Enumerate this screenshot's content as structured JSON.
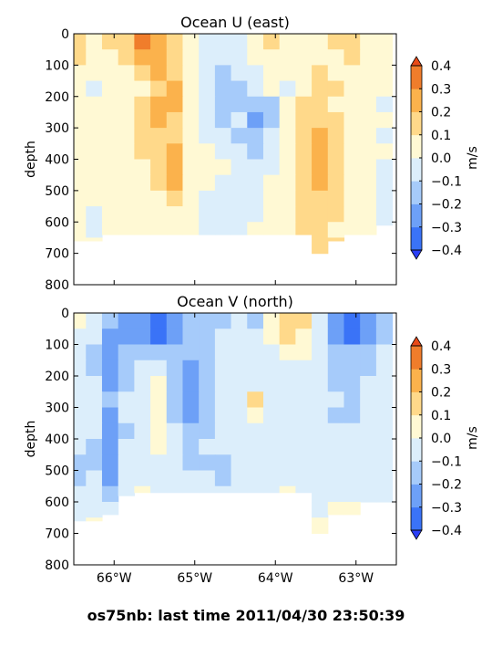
{
  "footer": {
    "text": "os75nb: last time 2011/04/30 23:50:39"
  },
  "chart_data": [
    {
      "type": "heatmap",
      "title": "Ocean U (east)",
      "ylabel": "depth",
      "y_ticks": [
        0,
        100,
        200,
        300,
        400,
        500,
        600,
        700,
        800
      ],
      "ylim": [
        800,
        0
      ],
      "xlim": [
        -66.5,
        -62.5
      ],
      "x_ticks": [
        -66,
        -65,
        -64,
        -63
      ],
      "x_tick_labels": [],
      "colorbar": {
        "label": "m/s",
        "levels": [
          -0.4,
          -0.3,
          -0.2,
          -0.1,
          0.0,
          0.1,
          0.2,
          0.3,
          0.4
        ],
        "tick_labels": [
          "0.4",
          "0.3",
          "0.2",
          "0.1",
          "0.0",
          "−0.1",
          "−0.2",
          "−0.3",
          "−0.4"
        ],
        "colors": [
          "#2a3ff6",
          "#3a73f7",
          "#6da0f7",
          "#a6cbfa",
          "#dceefb",
          "#fff9d4",
          "#ffd98a",
          "#fbb24c",
          "#f07d2b",
          "#e84a18"
        ]
      },
      "x": [
        -66.45,
        -66.25,
        -66.05,
        -65.85,
        -65.65,
        -65.45,
        -65.25,
        -65.05,
        -64.85,
        -64.65,
        -64.45,
        -64.25,
        -64.05,
        -63.85,
        -63.65,
        -63.45,
        -63.25,
        -63.05,
        -62.85,
        -62.65
      ],
      "depth": [
        25,
        75,
        125,
        175,
        225,
        275,
        325,
        375,
        425,
        475,
        525,
        575,
        625,
        675
      ],
      "series": [
        [
          0.15,
          0.08,
          0.12,
          0.18,
          0.3,
          0.25,
          0.12,
          0.02,
          -0.05,
          -0.08,
          -0.02,
          0.05,
          0.12,
          0.08,
          0.05,
          0.08,
          0.12,
          0.15,
          0.08,
          0.03
        ],
        [
          0.1,
          0.05,
          0.08,
          0.15,
          0.25,
          0.22,
          0.12,
          0.05,
          -0.05,
          -0.1,
          -0.05,
          0.02,
          0.08,
          0.05,
          0.03,
          0.05,
          0.08,
          0.12,
          0.05,
          0.02
        ],
        [
          0.05,
          0.02,
          0.05,
          0.08,
          0.12,
          0.22,
          0.15,
          0.05,
          -0.02,
          -0.12,
          -0.1,
          -0.02,
          0.02,
          0.02,
          0.05,
          0.12,
          0.08,
          0.05,
          0.03,
          0.0
        ],
        [
          0.05,
          -0.02,
          0.02,
          0.05,
          0.08,
          0.18,
          0.22,
          0.05,
          -0.05,
          -0.15,
          -0.12,
          -0.05,
          0.0,
          -0.02,
          0.08,
          0.15,
          0.1,
          0.05,
          0.02,
          0.0
        ],
        [
          0.05,
          0.0,
          0.02,
          0.05,
          0.1,
          0.22,
          0.22,
          0.05,
          -0.05,
          -0.12,
          -0.15,
          -0.18,
          -0.12,
          0.05,
          0.12,
          0.15,
          0.08,
          0.05,
          0.02,
          -0.02
        ],
        [
          0.02,
          0.02,
          0.05,
          0.05,
          0.12,
          0.22,
          0.18,
          0.02,
          -0.1,
          -0.15,
          -0.1,
          -0.25,
          -0.15,
          0.05,
          0.1,
          0.15,
          0.12,
          0.05,
          0.02,
          0.0
        ],
        [
          0.02,
          0.05,
          0.05,
          0.05,
          0.1,
          0.15,
          0.15,
          0.02,
          -0.02,
          -0.05,
          -0.12,
          -0.15,
          -0.1,
          0.05,
          0.15,
          0.22,
          0.12,
          0.05,
          0.0,
          -0.02
        ],
        [
          0.05,
          0.05,
          0.05,
          0.05,
          0.1,
          0.12,
          0.22,
          0.05,
          0.02,
          -0.02,
          -0.08,
          -0.15,
          -0.05,
          0.05,
          0.18,
          0.22,
          0.12,
          0.05,
          0.02,
          0.0
        ],
        [
          0.05,
          0.05,
          0.05,
          0.05,
          0.08,
          0.15,
          0.25,
          0.05,
          0.02,
          0.0,
          -0.05,
          -0.08,
          -0.02,
          0.05,
          0.15,
          0.22,
          0.12,
          0.05,
          0.0,
          -0.02
        ],
        [
          0.05,
          0.02,
          0.05,
          0.05,
          0.05,
          0.12,
          0.22,
          0.05,
          0.0,
          -0.05,
          -0.08,
          -0.05,
          0.0,
          0.05,
          0.12,
          0.22,
          0.1,
          0.05,
          0.0,
          -0.02
        ],
        [
          0.02,
          0.0,
          0.05,
          0.02,
          0.05,
          0.08,
          0.15,
          0.02,
          -0.02,
          -0.05,
          -0.05,
          -0.02,
          0.02,
          0.05,
          0.1,
          0.18,
          0.12,
          0.05,
          0.0,
          -0.02
        ],
        [
          0.0,
          -0.02,
          0.02,
          0.02,
          0.05,
          0.05,
          0.08,
          0.02,
          -0.02,
          -0.05,
          -0.05,
          -0.02,
          0.02,
          0.05,
          0.1,
          0.15,
          0.1,
          0.05,
          0.02,
          -0.05
        ],
        [
          0.02,
          -0.02,
          0.0,
          0.02,
          0.02,
          0.05,
          0.05,
          0.02,
          -0.02,
          -0.05,
          -0.02,
          0.0,
          0.05,
          0.05,
          0.12,
          0.15,
          0.05,
          0.02,
          0.0,
          -0.02
        ],
        [
          0.05,
          0.02,
          -0.02,
          0.0,
          0.02,
          0.02,
          0.02,
          0.0,
          -0.02,
          -0.02,
          0.0,
          0.02,
          0.05,
          0.02,
          0.08,
          0.15,
          0.12,
          0.02,
          0.0,
          0.0
        ]
      ],
      "max_depth": [
        660,
        660,
        640,
        640,
        640,
        640,
        640,
        640,
        640,
        640,
        640,
        640,
        640,
        640,
        640,
        720,
        660,
        640,
        640,
        610
      ]
    },
    {
      "type": "heatmap",
      "title": "Ocean V (north)",
      "ylabel": "depth",
      "y_ticks": [
        0,
        100,
        200,
        300,
        400,
        500,
        600,
        700,
        800
      ],
      "ylim": [
        800,
        0
      ],
      "xlim": [
        -66.5,
        -62.5
      ],
      "x_ticks": [
        -66,
        -65,
        -64,
        -63
      ],
      "x_tick_labels": [
        "66°W",
        "65°W",
        "64°W",
        "63°W"
      ],
      "colorbar": {
        "label": "m/s",
        "levels": [
          -0.4,
          -0.3,
          -0.2,
          -0.1,
          0.0,
          0.1,
          0.2,
          0.3,
          0.4
        ],
        "tick_labels": [
          "0.4",
          "0.3",
          "0.2",
          "0.1",
          "0.0",
          "−0.1",
          "−0.2",
          "−0.3",
          "−0.4"
        ],
        "colors": [
          "#2a3ff6",
          "#3a73f7",
          "#6da0f7",
          "#a6cbfa",
          "#dceefb",
          "#fff9d4",
          "#ffd98a",
          "#fbb24c",
          "#f07d2b",
          "#e84a18"
        ]
      },
      "x": [
        -66.45,
        -66.25,
        -66.05,
        -65.85,
        -65.65,
        -65.45,
        -65.25,
        -65.05,
        -64.85,
        -64.65,
        -64.45,
        -64.25,
        -64.05,
        -63.85,
        -63.65,
        -63.45,
        -63.25,
        -63.05,
        -62.85,
        -62.65
      ],
      "depth": [
        25,
        75,
        125,
        175,
        225,
        275,
        325,
        375,
        425,
        475,
        525,
        575,
        625,
        675
      ],
      "series": [
        [
          0.05,
          -0.05,
          -0.15,
          -0.22,
          -0.28,
          -0.32,
          -0.28,
          -0.15,
          -0.12,
          -0.12,
          -0.08,
          -0.12,
          0.05,
          0.15,
          0.12,
          -0.1,
          -0.22,
          -0.35,
          -0.25,
          -0.15
        ],
        [
          -0.05,
          -0.08,
          -0.22,
          -0.22,
          -0.25,
          -0.32,
          -0.25,
          -0.15,
          -0.12,
          -0.1,
          -0.08,
          -0.05,
          0.05,
          0.12,
          0.08,
          -0.1,
          -0.22,
          -0.32,
          -0.25,
          -0.12
        ],
        [
          -0.08,
          -0.12,
          -0.25,
          -0.18,
          -0.15,
          -0.15,
          -0.12,
          -0.12,
          -0.12,
          -0.08,
          -0.05,
          -0.05,
          -0.02,
          0.05,
          0.05,
          -0.08,
          -0.15,
          -0.18,
          -0.15,
          -0.1
        ],
        [
          -0.05,
          -0.12,
          -0.25,
          -0.12,
          -0.1,
          -0.05,
          -0.12,
          -0.22,
          -0.15,
          -0.08,
          -0.05,
          -0.05,
          -0.05,
          -0.02,
          -0.05,
          -0.08,
          -0.12,
          -0.15,
          -0.12,
          -0.08
        ],
        [
          -0.05,
          -0.1,
          -0.22,
          -0.12,
          -0.1,
          0.02,
          -0.15,
          -0.25,
          -0.18,
          -0.1,
          -0.05,
          -0.05,
          -0.08,
          -0.05,
          -0.05,
          -0.08,
          -0.12,
          -0.15,
          -0.1,
          -0.08
        ],
        [
          -0.05,
          -0.08,
          -0.2,
          -0.1,
          -0.08,
          0.05,
          -0.12,
          -0.25,
          -0.18,
          -0.1,
          -0.08,
          0.12,
          -0.08,
          -0.05,
          -0.02,
          -0.05,
          -0.1,
          -0.12,
          -0.1,
          -0.08
        ],
        [
          -0.02,
          -0.08,
          -0.22,
          -0.1,
          -0.05,
          0.05,
          -0.12,
          -0.22,
          -0.15,
          -0.1,
          -0.08,
          0.05,
          -0.1,
          -0.08,
          -0.05,
          -0.08,
          -0.12,
          -0.12,
          -0.1,
          -0.05
        ],
        [
          -0.05,
          -0.1,
          -0.22,
          -0.12,
          -0.05,
          0.05,
          -0.1,
          -0.15,
          -0.12,
          -0.1,
          -0.08,
          -0.05,
          -0.08,
          -0.1,
          -0.05,
          -0.05,
          -0.1,
          -0.1,
          -0.08,
          -0.05
        ],
        [
          -0.08,
          -0.12,
          -0.25,
          -0.1,
          -0.08,
          0.02,
          -0.08,
          -0.12,
          -0.1,
          -0.08,
          -0.1,
          -0.08,
          -0.05,
          -0.08,
          -0.05,
          -0.05,
          -0.08,
          -0.1,
          -0.05,
          -0.05
        ],
        [
          -0.12,
          -0.12,
          -0.22,
          -0.08,
          -0.08,
          -0.02,
          -0.05,
          -0.12,
          -0.12,
          -0.12,
          -0.1,
          -0.08,
          -0.05,
          -0.05,
          -0.05,
          -0.02,
          -0.05,
          -0.08,
          -0.05,
          -0.02
        ],
        [
          -0.12,
          -0.1,
          -0.22,
          -0.05,
          -0.05,
          -0.05,
          -0.05,
          -0.1,
          -0.1,
          -0.12,
          -0.1,
          -0.05,
          -0.05,
          -0.05,
          -0.05,
          -0.05,
          -0.05,
          -0.05,
          -0.02,
          -0.02
        ],
        [
          -0.08,
          -0.05,
          -0.15,
          -0.05,
          0.05,
          -0.05,
          -0.05,
          -0.05,
          -0.05,
          -0.05,
          -0.08,
          -0.05,
          -0.02,
          0.05,
          -0.02,
          -0.05,
          -0.05,
          -0.05,
          -0.02,
          -0.02
        ],
        [
          -0.05,
          -0.02,
          -0.05,
          0.05,
          0.02,
          -0.02,
          -0.02,
          -0.02,
          -0.05,
          -0.02,
          -0.02,
          -0.02,
          0.0,
          0.02,
          0.0,
          -0.02,
          0.02,
          0.02,
          0.0,
          0.0
        ],
        [
          -0.02,
          0.0,
          -0.05,
          0.02,
          0.0,
          0.0,
          -0.02,
          -0.02,
          -0.02,
          0.0,
          0.0,
          0.0,
          0.0,
          0.0,
          0.02,
          0.05,
          0.02,
          0.0,
          0.0,
          0.0
        ]
      ],
      "max_depth": [
        660,
        660,
        640,
        580,
        570,
        570,
        570,
        570,
        570,
        570,
        570,
        570,
        570,
        570,
        570,
        720,
        640,
        640,
        600,
        600
      ]
    }
  ]
}
